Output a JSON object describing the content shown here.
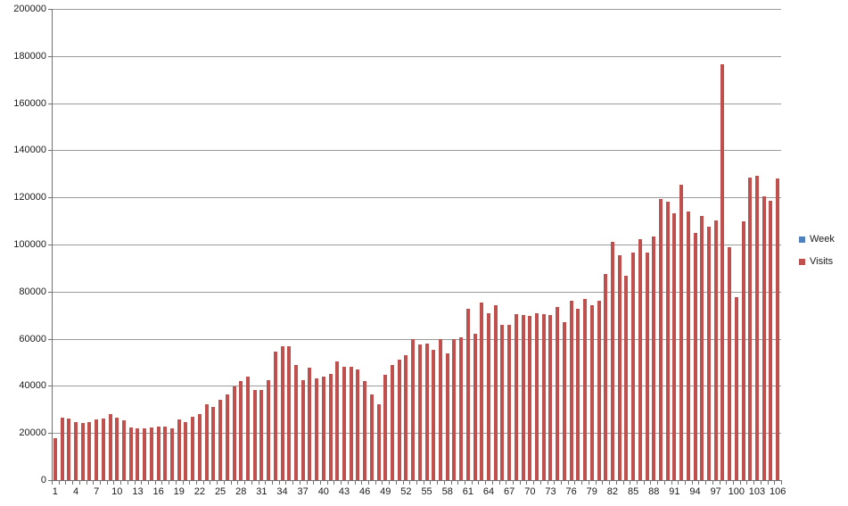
{
  "chart_data": {
    "type": "bar",
    "title": "",
    "xlabel": "",
    "ylabel": "",
    "y_axis": {
      "min": 0,
      "max": 200000,
      "step": 20000,
      "tick_labels": [
        "0",
        "20000",
        "40000",
        "60000",
        "80000",
        "100000",
        "120000",
        "140000",
        "160000",
        "180000",
        "200000"
      ]
    },
    "x_axis": {
      "tick_labels": [
        "1",
        "4",
        "7",
        "10",
        "13",
        "16",
        "19",
        "22",
        "25",
        "28",
        "31",
        "34",
        "37",
        "40",
        "43",
        "46",
        "49",
        "52",
        "55",
        "58",
        "61",
        "64",
        "67",
        "70",
        "73",
        "76",
        "79",
        "82",
        "85",
        "88",
        "91",
        "94",
        "97",
        "100",
        "103",
        "106"
      ],
      "label_step": 3
    },
    "grid": true,
    "legend_position": "right",
    "categories": [
      1,
      2,
      3,
      4,
      5,
      6,
      7,
      8,
      9,
      10,
      11,
      12,
      13,
      14,
      15,
      16,
      17,
      18,
      19,
      20,
      21,
      22,
      23,
      24,
      25,
      26,
      27,
      28,
      29,
      30,
      31,
      32,
      33,
      34,
      35,
      36,
      37,
      38,
      39,
      40,
      41,
      42,
      43,
      44,
      45,
      46,
      47,
      48,
      49,
      50,
      51,
      52,
      53,
      54,
      55,
      56,
      57,
      58,
      59,
      60,
      61,
      62,
      63,
      64,
      65,
      66,
      67,
      68,
      69,
      70,
      71,
      72,
      73,
      74,
      75,
      76,
      77,
      78,
      79,
      80,
      81,
      82,
      83,
      84,
      85,
      86,
      87,
      88,
      89,
      90,
      91,
      92,
      93,
      94,
      95,
      96,
      97,
      98,
      99,
      100,
      101,
      102,
      103,
      104,
      105,
      106
    ],
    "series": [
      {
        "name": "Week",
        "color": "#4F81BD",
        "plotted": false,
        "values": [
          1,
          2,
          3,
          4,
          5,
          6,
          7,
          8,
          9,
          10,
          11,
          12,
          13,
          14,
          15,
          16,
          17,
          18,
          19,
          20,
          21,
          22,
          23,
          24,
          25,
          26,
          27,
          28,
          29,
          30,
          31,
          32,
          33,
          34,
          35,
          36,
          37,
          38,
          39,
          40,
          41,
          42,
          43,
          44,
          45,
          46,
          47,
          48,
          49,
          50,
          51,
          52,
          53,
          54,
          55,
          56,
          57,
          58,
          59,
          60,
          61,
          62,
          63,
          64,
          65,
          66,
          67,
          68,
          69,
          70,
          71,
          72,
          73,
          74,
          75,
          76,
          77,
          78,
          79,
          80,
          81,
          82,
          83,
          84,
          85,
          86,
          87,
          88,
          89,
          90,
          91,
          92,
          93,
          94,
          95,
          96,
          97,
          98,
          99,
          100,
          101,
          102,
          103,
          104,
          105,
          106
        ]
      },
      {
        "name": "Visits",
        "color": "#C0504D",
        "plotted": true,
        "values": [
          17900,
          26400,
          26300,
          24500,
          24300,
          24600,
          25900,
          26100,
          28000,
          26400,
          25500,
          22400,
          22100,
          22100,
          22400,
          22900,
          22600,
          22100,
          25600,
          24800,
          26900,
          27900,
          32100,
          31100,
          34200,
          36400,
          39700,
          41900,
          43800,
          38100,
          38100,
          42500,
          54500,
          57000,
          56800,
          49000,
          42500,
          47800,
          43200,
          44000,
          45200,
          50500,
          48300,
          48000,
          47100,
          42200,
          36500,
          32100,
          44800,
          48800,
          51000,
          53200,
          59800,
          57400,
          58000,
          55300,
          59900,
          53800,
          59800,
          60500,
          72700,
          62000,
          75500,
          71000,
          74300,
          66000,
          65900,
          70300,
          70100,
          69800,
          70700,
          70400,
          70100,
          73600,
          67000,
          76000,
          72700,
          77000,
          74100,
          76000,
          87500,
          101000,
          95300,
          86800,
          96600,
          102300,
          96600,
          103300,
          119500,
          118000,
          113200,
          125200,
          114000,
          105000,
          112300,
          107700,
          110400,
          176700,
          98700,
          77500,
          109900,
          128400,
          129000,
          120400,
          118400,
          127900
        ]
      }
    ]
  },
  "legend": {
    "items": [
      {
        "label": "Week",
        "color": "#4F81BD"
      },
      {
        "label": "Visits",
        "color": "#C0504D"
      }
    ]
  },
  "colors": {
    "background": "#ffffff",
    "gridline": "#9a9a9a",
    "axis": "#707070",
    "text": "#1a1a1a"
  }
}
